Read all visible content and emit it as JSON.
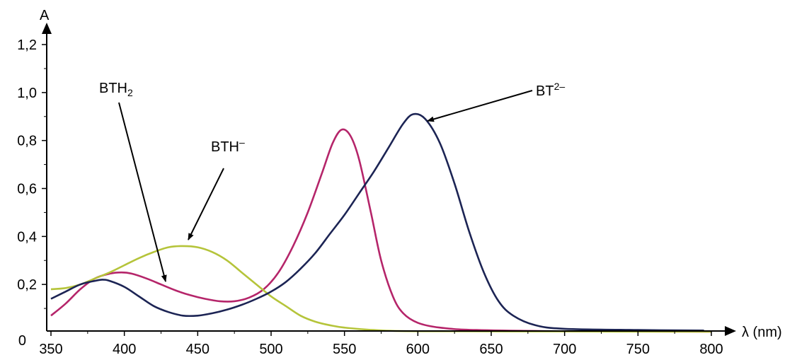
{
  "chart_data": {
    "type": "line",
    "title": "",
    "xlabel": "λ (nm)",
    "ylabel": "A",
    "xlim": [
      350,
      800
    ],
    "ylim": [
      0,
      1.2
    ],
    "x_ticks": [
      "350",
      "400",
      "450",
      "500",
      "550",
      "600",
      "650",
      "700",
      "750",
      "800"
    ],
    "y_ticks": [
      "0",
      "0,2",
      "0,4",
      "0,6",
      "0,8",
      "1,0",
      "1,2"
    ],
    "grid": false,
    "series": [
      {
        "name": "BTH2",
        "color": "#b5256a",
        "points": [
          [
            350,
            0.07
          ],
          [
            360,
            0.12
          ],
          [
            370,
            0.18
          ],
          [
            380,
            0.225
          ],
          [
            390,
            0.245
          ],
          [
            398,
            0.25
          ],
          [
            405,
            0.245
          ],
          [
            415,
            0.225
          ],
          [
            425,
            0.2
          ],
          [
            435,
            0.175
          ],
          [
            445,
            0.155
          ],
          [
            455,
            0.14
          ],
          [
            465,
            0.13
          ],
          [
            475,
            0.13
          ],
          [
            485,
            0.145
          ],
          [
            495,
            0.18
          ],
          [
            505,
            0.25
          ],
          [
            515,
            0.36
          ],
          [
            525,
            0.5
          ],
          [
            535,
            0.67
          ],
          [
            542,
            0.79
          ],
          [
            548,
            0.845
          ],
          [
            554,
            0.82
          ],
          [
            560,
            0.72
          ],
          [
            568,
            0.5
          ],
          [
            575,
            0.3
          ],
          [
            583,
            0.15
          ],
          [
            590,
            0.08
          ],
          [
            600,
            0.04
          ],
          [
            615,
            0.02
          ],
          [
            640,
            0.01
          ],
          [
            700,
            0.005
          ],
          [
            800,
            0.003
          ]
        ]
      },
      {
        "name": "BTH⁻",
        "color": "#b5c43a",
        "points": [
          [
            350,
            0.18
          ],
          [
            360,
            0.185
          ],
          [
            370,
            0.2
          ],
          [
            380,
            0.225
          ],
          [
            390,
            0.25
          ],
          [
            400,
            0.28
          ],
          [
            410,
            0.31
          ],
          [
            420,
            0.335
          ],
          [
            430,
            0.355
          ],
          [
            440,
            0.36
          ],
          [
            450,
            0.355
          ],
          [
            460,
            0.335
          ],
          [
            470,
            0.3
          ],
          [
            480,
            0.25
          ],
          [
            490,
            0.2
          ],
          [
            500,
            0.15
          ],
          [
            510,
            0.11
          ],
          [
            520,
            0.07
          ],
          [
            530,
            0.045
          ],
          [
            540,
            0.03
          ],
          [
            550,
            0.02
          ],
          [
            570,
            0.01
          ],
          [
            600,
            0.005
          ],
          [
            700,
            0.004
          ],
          [
            800,
            0.003
          ]
        ]
      },
      {
        "name": "BT²⁻",
        "color": "#1c2454",
        "points": [
          [
            350,
            0.14
          ],
          [
            360,
            0.17
          ],
          [
            370,
            0.2
          ],
          [
            380,
            0.215
          ],
          [
            385,
            0.22
          ],
          [
            390,
            0.215
          ],
          [
            400,
            0.19
          ],
          [
            410,
            0.15
          ],
          [
            420,
            0.11
          ],
          [
            430,
            0.085
          ],
          [
            440,
            0.07
          ],
          [
            450,
            0.07
          ],
          [
            460,
            0.08
          ],
          [
            470,
            0.095
          ],
          [
            480,
            0.115
          ],
          [
            490,
            0.14
          ],
          [
            500,
            0.17
          ],
          [
            510,
            0.21
          ],
          [
            520,
            0.265
          ],
          [
            530,
            0.33
          ],
          [
            540,
            0.41
          ],
          [
            550,
            0.49
          ],
          [
            560,
            0.58
          ],
          [
            570,
            0.67
          ],
          [
            580,
            0.77
          ],
          [
            590,
            0.87
          ],
          [
            597,
            0.91
          ],
          [
            605,
            0.89
          ],
          [
            615,
            0.79
          ],
          [
            625,
            0.62
          ],
          [
            635,
            0.42
          ],
          [
            645,
            0.25
          ],
          [
            655,
            0.13
          ],
          [
            665,
            0.07
          ],
          [
            680,
            0.03
          ],
          [
            700,
            0.015
          ],
          [
            750,
            0.01
          ],
          [
            795,
            0.008
          ]
        ]
      }
    ],
    "annotations": {
      "bth2": {
        "main": "BTH",
        "sub": "2"
      },
      "bth_minus": {
        "main": "BTH",
        "sup": "–"
      },
      "bt2": {
        "main": "BT",
        "sup": "2–"
      }
    }
  }
}
